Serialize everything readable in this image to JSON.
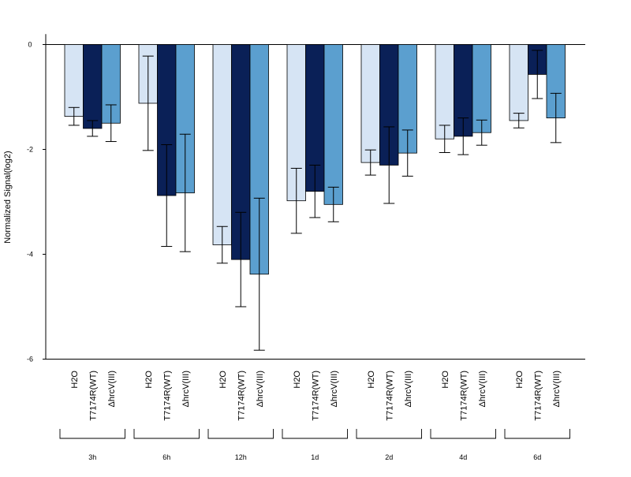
{
  "chart_data": {
    "type": "bar",
    "title": "",
    "xlabel": "",
    "ylabel": "Normalized Signal(log2)",
    "ylim": [
      -6,
      0.2
    ],
    "yticks": [
      0,
      -2,
      -4,
      -6
    ],
    "categories": [
      "3h",
      "6h",
      "12h",
      "1d",
      "2d",
      "4d",
      "6d"
    ],
    "series": [
      {
        "name": "H2O",
        "color": "#d6e4f4",
        "values": [
          -1.37,
          -1.12,
          -3.82,
          -2.98,
          -2.25,
          -1.8,
          -1.45
        ],
        "errors": [
          0.17,
          0.9,
          0.35,
          0.62,
          0.24,
          0.26,
          0.14
        ]
      },
      {
        "name": "T7174R(WT)",
        "color": "#0a2057",
        "values": [
          -1.6,
          -2.88,
          -4.1,
          -2.8,
          -2.3,
          -1.75,
          -0.57
        ],
        "errors": [
          0.15,
          0.97,
          0.9,
          0.5,
          0.73,
          0.35,
          0.46
        ]
      },
      {
        "name": "ΔhrcV(III)",
        "color": "#5b9fcf",
        "values": [
          -1.5,
          -2.83,
          -4.38,
          -3.05,
          -2.07,
          -1.68,
          -1.4
        ],
        "errors": [
          0.35,
          1.12,
          1.45,
          0.33,
          0.44,
          0.24,
          0.47
        ]
      }
    ]
  }
}
